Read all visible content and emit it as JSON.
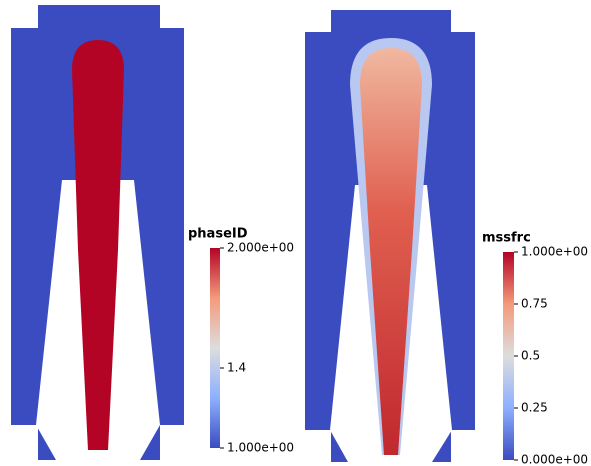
{
  "panels": [
    {
      "colorbar": {
        "title": "phaseID",
        "range": [
          1,
          2
        ],
        "ticks": [
          {
            "value": 2,
            "label": "2.000e+00"
          },
          1.4,
          {
            "value": 1,
            "label": "1.000e+00"
          }
        ]
      }
    },
    {
      "colorbar": {
        "title": "mssfrc",
        "range": [
          0,
          1
        ],
        "ticks": [
          {
            "value": 1,
            "label": "1.000e+00"
          },
          0.75,
          0.5,
          0.25,
          {
            "value": 0,
            "label": "0.000e+00"
          }
        ]
      }
    }
  ]
}
